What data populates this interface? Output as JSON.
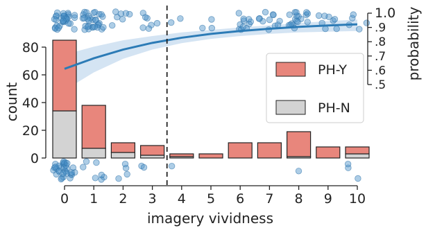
{
  "chart_data": {
    "type": "bar",
    "xlabel": "imagery vividness",
    "ylabel": "count",
    "y2label": "probability",
    "x": [
      0,
      1,
      2,
      3,
      4,
      5,
      6,
      7,
      8,
      9,
      10
    ],
    "xticks": [
      "0",
      "1",
      "2",
      "3",
      "4",
      "5",
      "6",
      "7",
      "8",
      "9",
      "10"
    ],
    "yticks": [
      "0",
      "20",
      "40",
      "60",
      "80"
    ],
    "ylim": [
      -17,
      101
    ],
    "y2ticks": [
      ".5",
      ".6",
      ".7",
      ".8",
      ".9",
      "1.0"
    ],
    "y2lim": [
      0.5,
      1.0
    ],
    "stacked": true,
    "series": [
      {
        "name": "PH-N",
        "color": "#d3d3d3",
        "values": [
          34,
          7,
          4,
          2,
          1,
          0,
          0,
          0,
          1,
          0,
          3
        ]
      },
      {
        "name": "PH-Y",
        "color": "#e8867c",
        "values": [
          51,
          31,
          7,
          7,
          2,
          3,
          11,
          11,
          18,
          8,
          5
        ]
      }
    ],
    "threshold_line": {
      "x": 3.5,
      "style": "dashed"
    },
    "fit_curve": {
      "color": "#2c7bb6",
      "band_color": "#c6dbef",
      "x": [
        0,
        1,
        2,
        3,
        4,
        5,
        6,
        7,
        8,
        9,
        10
      ],
      "y": [
        0.61,
        0.684,
        0.745,
        0.792,
        0.828,
        0.855,
        0.875,
        0.891,
        0.904,
        0.914,
        0.922
      ],
      "lower": [
        0.46,
        0.585,
        0.68,
        0.745,
        0.79,
        0.82,
        0.84,
        0.855,
        0.865,
        0.87,
        0.875
      ],
      "upper": [
        0.71,
        0.765,
        0.81,
        0.84,
        0.865,
        0.883,
        0.9,
        0.915,
        0.93,
        0.945,
        0.955
      ]
    },
    "legend": {
      "placement": "right",
      "entries": [
        "PH-Y",
        "PH-N"
      ]
    },
    "grid": false
  }
}
